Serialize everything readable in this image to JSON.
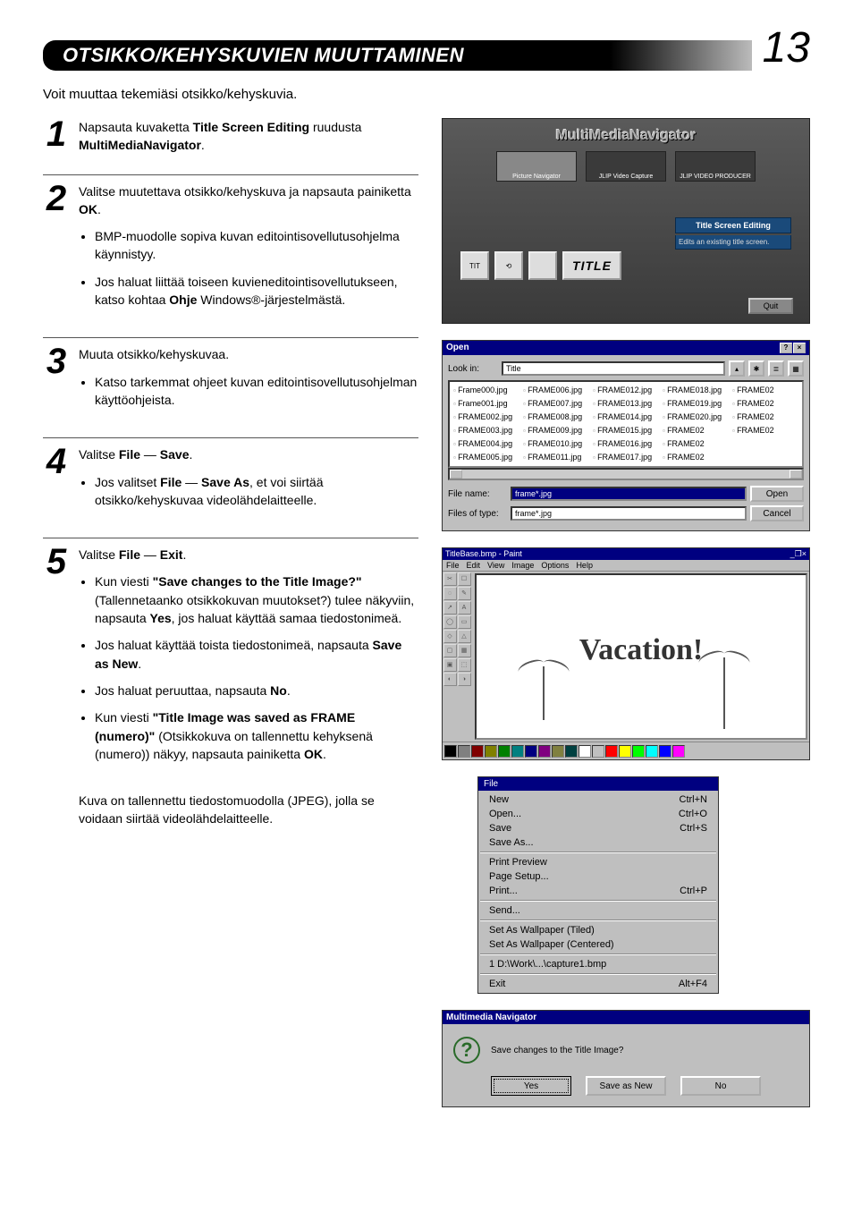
{
  "page": {
    "title": "OTSIKKO/KEHYSKUVIEN MUUTTAMINEN",
    "number": "13"
  },
  "intro": "Voit muuttaa tekemiäsi otsikko/kehyskuvia.",
  "steps": {
    "s1": {
      "num": "1",
      "lead_a": "Napsauta kuvaketta ",
      "lead_b_bold": "Title Screen Editing",
      "lead_c": " ruudusta ",
      "lead_d_bold": "MultiMediaNavigator",
      "lead_e": "."
    },
    "s2": {
      "num": "2",
      "lead_a": "Valitse muutettava otsikko/kehyskuva ja napsauta painiketta ",
      "lead_b_bold": "OK",
      "lead_c": ".",
      "b1": "BMP-muodolle sopiva kuvan editointisovellutusohjelma käynnistyy.",
      "b2_a": "Jos haluat liittää toiseen kuvieneditointisovellutukseen, katso kohtaa ",
      "b2_b_bold": "Ohje",
      "b2_c": " Windows®-järjestelmästä."
    },
    "s3": {
      "num": "3",
      "lead": "Muuta otsikko/kehyskuvaa.",
      "b1": "Katso tarkemmat ohjeet kuvan editointisovellutusohjelman käyttöohjeista."
    },
    "s4": {
      "num": "4",
      "lead_a": "Valitse ",
      "lead_b_bold": "File",
      "lead_c": " — ",
      "lead_d_bold": "Save",
      "lead_e": ".",
      "b1_a": "Jos valitset ",
      "b1_b_bold": "File",
      "b1_c": " — ",
      "b1_d_bold": "Save As",
      "b1_e": ", et voi siirtää otsikko/kehyskuvaa videolähdelaitteelle."
    },
    "s5": {
      "num": "5",
      "lead_a": "Valitse ",
      "lead_b_bold": "File",
      "lead_c": " — ",
      "lead_d_bold": "Exit",
      "lead_e": ".",
      "b1_a": "Kun viesti ",
      "b1_b_bold": "\"Save changes to the Title Image?\"",
      "b1_c": " (Tallennetaanko otsikkokuvan muutokset?) tulee näkyviin, napsauta ",
      "b1_d_bold": "Yes",
      "b1_e": ", jos haluat käyttää samaa tiedostonimeä.",
      "b2_a": "Jos haluat käyttää toista tiedostonimeä, napsauta ",
      "b2_b_bold": "Save as New",
      "b2_c": ".",
      "b3_a": "Jos haluat peruuttaa, napsauta ",
      "b3_b_bold": "No",
      "b3_c": ".",
      "b4_a": "Kun viesti ",
      "b4_b_bold": "\"Title Image was saved as FRAME (numero)\"",
      "b4_c": " (Otsikkokuva on tallennettu kehyksenä (numero)) näkyy, napsauta painiketta ",
      "b4_d_bold": "OK",
      "b4_e": "."
    },
    "final": "Kuva on tallennettu tiedostomuodolla (JPEG), jolla se voidaan siirtää videolähdelaitteelle."
  },
  "mmnav": {
    "title": "MultiMediaNavigator",
    "cards": [
      "Picture Navigator",
      "JLIP Video Capture",
      "JLIP VIDEO PRODUCER"
    ],
    "tse_label": "Title Screen Editing",
    "tse_desc": "Edits an existing title screen.",
    "tiles": [
      "TIT",
      "⟲",
      "",
      "TITLE"
    ],
    "quit": "Quit"
  },
  "open": {
    "title": "Open",
    "lookin_label": "Look in:",
    "lookin_value": "Title",
    "files": [
      "Frame000.jpg",
      "Frame001.jpg",
      "FRAME002.jpg",
      "FRAME003.jpg",
      "FRAME004.jpg",
      "FRAME005.jpg",
      "FRAME006.jpg",
      "FRAME007.jpg",
      "FRAME008.jpg",
      "FRAME009.jpg",
      "FRAME010.jpg",
      "FRAME011.jpg",
      "FRAME012.jpg",
      "FRAME013.jpg",
      "FRAME014.jpg",
      "FRAME015.jpg",
      "FRAME016.jpg",
      "FRAME017.jpg",
      "FRAME018.jpg",
      "FRAME019.jpg",
      "FRAME020.jpg",
      "FRAME02",
      "FRAME02",
      "FRAME02",
      "FRAME02",
      "FRAME02",
      "FRAME02",
      "FRAME02"
    ],
    "filename_label": "File name:",
    "filename_value": "frame*.jpg",
    "filetype_label": "Files of type:",
    "filetype_value": "frame*.jpg",
    "open_btn": "Open",
    "cancel_btn": "Cancel"
  },
  "paint": {
    "title": "TitleBase.bmp - Paint",
    "menu": [
      "File",
      "Edit",
      "View",
      "Image",
      "Options",
      "Help"
    ],
    "tool_glyphs": [
      "✂",
      "☐",
      "◌",
      "✎",
      "↗",
      "A",
      "◯",
      "▭",
      "◇",
      "△",
      "▢",
      "▦",
      "▣",
      "⬚",
      "◐",
      "◑"
    ],
    "text": "Vacation!",
    "palette": [
      "#000000",
      "#808080",
      "#800000",
      "#808000",
      "#008000",
      "#008080",
      "#000080",
      "#800080",
      "#808040",
      "#004040",
      "#ffffff",
      "#c0c0c0",
      "#ff0000",
      "#ffff00",
      "#00ff00",
      "#00ffff",
      "#0000ff",
      "#ff00ff"
    ]
  },
  "filemenu": {
    "title": "File",
    "items": [
      {
        "label": "New",
        "shortcut": "Ctrl+N"
      },
      {
        "label": "Open...",
        "shortcut": "Ctrl+O"
      },
      {
        "label": "Save",
        "shortcut": "Ctrl+S"
      },
      {
        "label": "Save As...",
        "shortcut": ""
      }
    ],
    "items2": [
      {
        "label": "Print Preview",
        "shortcut": ""
      },
      {
        "label": "Page Setup...",
        "shortcut": ""
      },
      {
        "label": "Print...",
        "shortcut": "Ctrl+P"
      }
    ],
    "items3": [
      {
        "label": "Send...",
        "shortcut": ""
      }
    ],
    "items4": [
      {
        "label": "Set As Wallpaper (Tiled)",
        "shortcut": ""
      },
      {
        "label": "Set As Wallpaper (Centered)",
        "shortcut": ""
      }
    ],
    "items5": [
      {
        "label": "1 D:\\Work\\...\\capture1.bmp",
        "shortcut": ""
      }
    ],
    "items6": [
      {
        "label": "Exit",
        "shortcut": "Alt+F4"
      }
    ]
  },
  "confirm": {
    "title": "Multimedia Navigator",
    "msg": "Save changes to the Title Image?",
    "yes": "Yes",
    "saveasnew": "Save as New",
    "no": "No"
  }
}
